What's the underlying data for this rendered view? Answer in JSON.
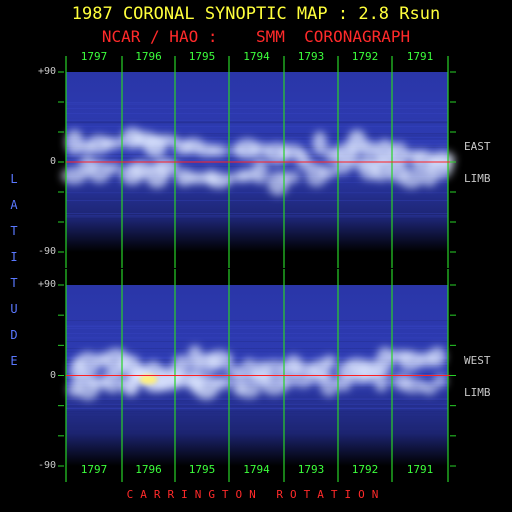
{
  "title": "1987 CORONAL SYNOPTIC MAP : 2.8 Rsun",
  "subtitle": "NCAR / HAO :    SMM  CORONAGRAPH",
  "ylabel": "LATITUDE",
  "xlabel": "CARRINGTON ROTATION",
  "colors": {
    "title": "#ffff3c",
    "subtitle": "#ff2a2a",
    "gridlines": "#28d228",
    "equator": "#ff2020",
    "ylabel": "#5a78ff",
    "rotation_labels": "#3cff3c"
  },
  "chart_data": [
    {
      "type": "heatmap",
      "panel": "top",
      "side_label_1": "EAST",
      "side_label_2": "LIMB",
      "y_ticks": [
        "+90",
        "0",
        "-90"
      ],
      "ylim": [
        -90,
        90
      ],
      "x_categories": [
        "1797",
        "1796",
        "1795",
        "1794",
        "1793",
        "1792",
        "1791"
      ],
      "equator_line": 0,
      "streamers": [
        {
          "rot": 1797,
          "lat": 18,
          "i": 0.7
        },
        {
          "rot": 1797,
          "lat": -8,
          "i": 0.6
        },
        {
          "rot": 1796,
          "lat": 22,
          "i": 0.8
        },
        {
          "rot": 1796,
          "lat": -12,
          "i": 0.7
        },
        {
          "rot": 1795,
          "lat": 10,
          "i": 0.7
        },
        {
          "rot": 1795,
          "lat": -18,
          "i": 0.8
        },
        {
          "rot": 1794,
          "lat": 15,
          "i": 0.6
        },
        {
          "rot": 1794,
          "lat": -16,
          "i": 0.6
        },
        {
          "rot": 1793,
          "lat": 12,
          "i": 0.7
        },
        {
          "rot": 1793,
          "lat": -10,
          "i": 0.5
        },
        {
          "rot": 1792,
          "lat": 14,
          "i": 0.8
        },
        {
          "rot": 1792,
          "lat": -5,
          "i": 0.6
        },
        {
          "rot": 1791,
          "lat": 6,
          "i": 0.7
        },
        {
          "rot": 1791,
          "lat": -12,
          "i": 0.6
        }
      ]
    },
    {
      "type": "heatmap",
      "panel": "bottom",
      "side_label_1": "WEST",
      "side_label_2": "LIMB",
      "y_ticks": [
        "+90",
        "0",
        "-90"
      ],
      "ylim": [
        -90,
        90
      ],
      "x_categories": [
        "1797",
        "1796",
        "1795",
        "1794",
        "1793",
        "1792",
        "1791"
      ],
      "equator_line": 0,
      "streamers": [
        {
          "rot": 1797,
          "lat": 10,
          "i": 0.7
        },
        {
          "rot": 1797,
          "lat": -8,
          "i": 0.6
        },
        {
          "rot": 1796,
          "lat": 8,
          "i": 0.8
        },
        {
          "rot": 1796,
          "lat": -4,
          "i": 1.0
        },
        {
          "rot": 1795,
          "lat": 14,
          "i": 0.7
        },
        {
          "rot": 1795,
          "lat": -5,
          "i": 0.8
        },
        {
          "rot": 1794,
          "lat": 10,
          "i": 0.6
        },
        {
          "rot": 1794,
          "lat": -8,
          "i": 0.6
        },
        {
          "rot": 1793,
          "lat": 12,
          "i": 0.7
        },
        {
          "rot": 1793,
          "lat": -6,
          "i": 0.5
        },
        {
          "rot": 1792,
          "lat": 12,
          "i": 0.7
        },
        {
          "rot": 1792,
          "lat": -2,
          "i": 0.6
        },
        {
          "rot": 1791,
          "lat": 14,
          "i": 0.7
        },
        {
          "rot": 1791,
          "lat": -10,
          "i": 0.5
        }
      ]
    }
  ]
}
